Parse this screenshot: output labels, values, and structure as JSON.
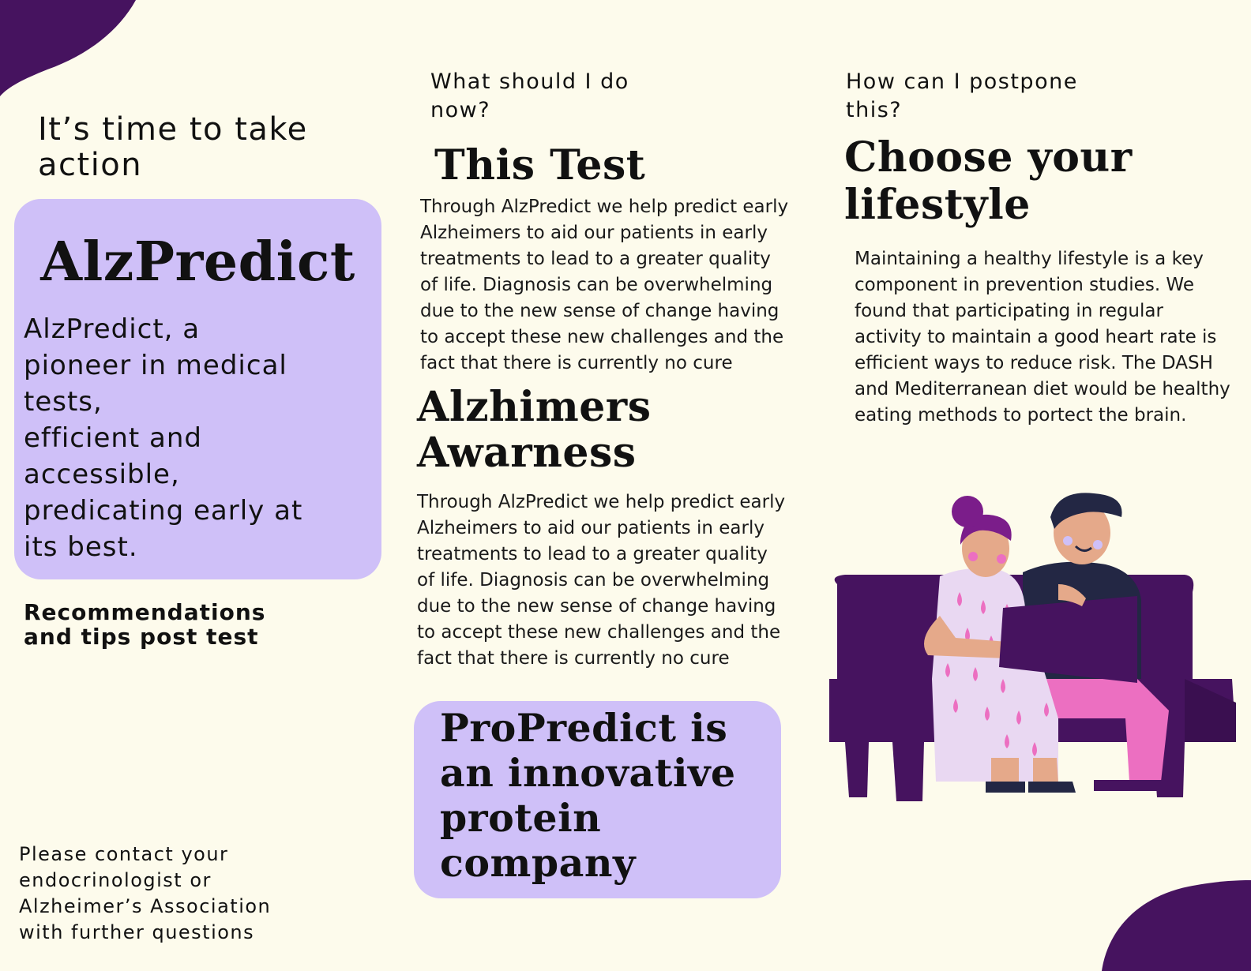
{
  "colors": {
    "background": "#fdfbec",
    "accent_purple": "#46135f",
    "card_lavender": "#cfc0f8",
    "pink": "#ec6fc1"
  },
  "col1": {
    "heading": "It’s time to take action",
    "card_title": "AlzPredict",
    "card_text": "AlzPredict, a\npioneer in medical\ntests,\nefficient and\naccessible,\npredicating early at\nits best.",
    "recommendations": "Recommendations\nand tips post test",
    "contact": "Please contact your\nendocrinologist or\nAlzheimer’s Association\nwith further questions"
  },
  "col2": {
    "question": "What should I do\nnow?",
    "test_title": "This Test",
    "test_body": "Through AlzPredict we help predict early Alzheimers to aid our patients in early treatments to lead to a greater quality of life. Diagnosis can be overwhelming due to the new sense of change having to accept these new challenges and the fact that there is currently no cure",
    "awarness_title": "Alzhimers\nAwarness",
    "awarness_body": "Through AlzPredict we help predict early Alzheimers to aid our patients in early treatments to lead to a greater quality of life. Diagnosis can be overwhelming due to the new sense of change having to accept these new challenges and the fact that there is currently no cure",
    "pro_text": "ProPredict is\nan innovative\nprotein\ncompany"
  },
  "col3": {
    "question": "How can I postpone\nthis?",
    "lifestyle_title": "Choose your\nlifestyle",
    "lifestyle_body": "Maintaining a healthy lifestyle is a key component in prevention studies. We found that participating in regular activity to maintain a good heart rate is efficient ways to reduce risk. The DASH and Mediterranean diet would be healthy eating methods to portect the brain.",
    "illustration_icon": "couple-on-couch-reading-illustration"
  }
}
